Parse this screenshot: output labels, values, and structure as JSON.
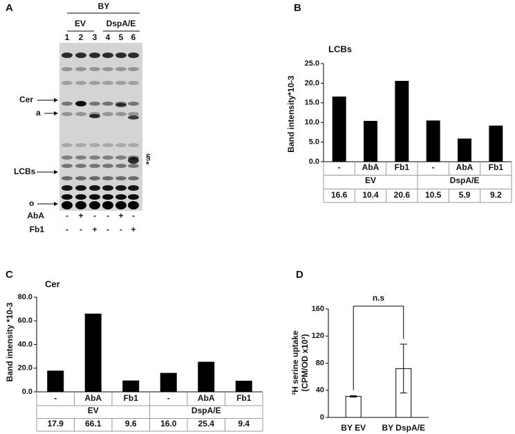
{
  "gel": {
    "panel": "A",
    "top_label": "BY",
    "groups": [
      "EV",
      "DspA/E"
    ],
    "lanes": [
      "1",
      "2",
      "3",
      "4",
      "5",
      "6"
    ],
    "markers": [
      "Cer",
      "a",
      "LCBs",
      "o"
    ],
    "side_marks": [
      "§",
      "*"
    ],
    "treatments": [
      {
        "name": "AbA",
        "signs": [
          "-",
          "+",
          "-",
          "-",
          "+",
          "-"
        ]
      },
      {
        "name": "Fb1",
        "signs": [
          "-",
          "-",
          "+",
          "-",
          "-",
          "+"
        ]
      }
    ]
  },
  "chart_data": [
    {
      "type": "bar",
      "panel": "B",
      "title": "LCBs",
      "y_label": [
        "Band intensity*10-3"
      ],
      "categories": [
        "-",
        "AbA",
        "Fb1",
        "-",
        "AbA",
        "Fb1"
      ],
      "groups": [
        "EV",
        "DspA/E"
      ],
      "values": [
        16.6,
        10.4,
        20.6,
        10.5,
        5.9,
        9.2
      ],
      "color": "#000000",
      "ylim": [
        0,
        25
      ],
      "yticks": [
        {
          "value": 0,
          "label": "0.0"
        },
        {
          "value": 5,
          "label": "5.0"
        },
        {
          "value": 10,
          "label": "10.0"
        },
        {
          "value": 15,
          "label": "15.0"
        },
        {
          "value": 20,
          "label": "20.0"
        },
        {
          "value": 25,
          "label": "25.0"
        }
      ]
    },
    {
      "type": "bar",
      "panel": "C",
      "title": "Cer",
      "y_label": [
        "Band intensity *10-3"
      ],
      "categories": [
        "-",
        "AbA",
        "Fb1",
        "-",
        "AbA",
        "Fb1"
      ],
      "groups": [
        "EV",
        "DspA/E"
      ],
      "values": [
        17.9,
        66.1,
        9.6,
        16.0,
        25.4,
        9.4
      ],
      "value_labels": [
        "17.9",
        "66.1",
        "9.6",
        "16.0",
        "25.4",
        "9.4"
      ],
      "color": "#000000",
      "ylim": [
        0,
        80
      ],
      "yticks": [
        {
          "value": 0,
          "label": "0.0"
        },
        {
          "value": 20,
          "label": "20.0"
        },
        {
          "value": 40,
          "label": "40.0"
        },
        {
          "value": 60,
          "label": "60.0"
        },
        {
          "value": 80,
          "label": "80.0"
        }
      ]
    },
    {
      "type": "errorbar",
      "panel": "D",
      "y_label": [
        "³H serine uptake",
        "(CPM/OD x10³)"
      ],
      "categories": [
        "BY EV",
        "BY DspA/E"
      ],
      "values": [
        31,
        72
      ],
      "errors": [
        1,
        36
      ],
      "color": "#ffffff",
      "annotation": "n.s",
      "ylim": [
        0,
        160
      ],
      "yticks": [
        0,
        40,
        80,
        120,
        160
      ]
    }
  ]
}
